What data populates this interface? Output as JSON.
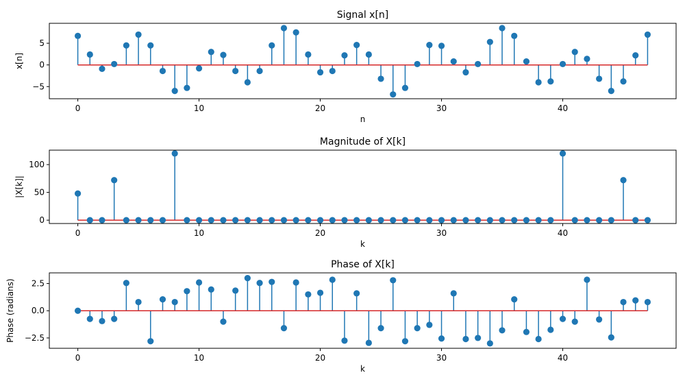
{
  "chart_data": [
    {
      "type": "stem",
      "title": "Signal x[n]",
      "xlabel": "n",
      "ylabel": "x[n]",
      "xlim": [
        -2.35,
        49.35
      ],
      "ylim": [
        -7.8,
        9.6
      ],
      "xticks": [
        0,
        10,
        20,
        30,
        40
      ],
      "xtick_labels": [
        "0",
        "10",
        "20",
        "30",
        "40"
      ],
      "yticks": [
        5,
        0,
        -5
      ],
      "ytick_labels": [
        "5",
        "0",
        "−5"
      ],
      "x": [
        0,
        1,
        2,
        3,
        4,
        5,
        6,
        7,
        8,
        9,
        10,
        11,
        12,
        13,
        14,
        15,
        16,
        17,
        18,
        19,
        20,
        21,
        22,
        23,
        24,
        25,
        26,
        27,
        28,
        29,
        30,
        31,
        32,
        33,
        34,
        35,
        36,
        37,
        38,
        39,
        40,
        41,
        42,
        43,
        44,
        45,
        46,
        47
      ],
      "values": [
        6.7,
        2.4,
        -0.9,
        0.2,
        4.5,
        7.0,
        4.5,
        -1.4,
        -6.0,
        -5.3,
        -0.8,
        3.0,
        2.3,
        -1.4,
        -4.0,
        -1.4,
        4.5,
        8.5,
        7.5,
        2.4,
        -1.7,
        -1.4,
        2.2,
        4.6,
        2.4,
        -3.2,
        -6.8,
        -5.3,
        0.2,
        4.6,
        4.4,
        0.8,
        -1.7,
        0.2,
        5.3,
        8.5,
        6.7,
        0.8,
        -4.0,
        -3.8,
        0.2,
        3.0,
        1.4,
        -3.2,
        -6.0,
        -3.8,
        2.2,
        7.0
      ],
      "baseline": 0,
      "colors": {
        "stem": "#1f77b4",
        "marker": "#1f77b4",
        "baseline": "#d62728"
      }
    },
    {
      "type": "stem",
      "title": "Magnitude of X[k]",
      "xlabel": "k",
      "ylabel": "|X[k]|",
      "xlim": [
        -2.35,
        49.35
      ],
      "ylim": [
        -6,
        126
      ],
      "xticks": [
        0,
        10,
        20,
        30,
        40
      ],
      "xtick_labels": [
        "0",
        "10",
        "20",
        "30",
        "40"
      ],
      "yticks": [
        100,
        50,
        0
      ],
      "ytick_labels": [
        "100",
        "50",
        "0"
      ],
      "x": [
        0,
        1,
        2,
        3,
        4,
        5,
        6,
        7,
        8,
        9,
        10,
        11,
        12,
        13,
        14,
        15,
        16,
        17,
        18,
        19,
        20,
        21,
        22,
        23,
        24,
        25,
        26,
        27,
        28,
        29,
        30,
        31,
        32,
        33,
        34,
        35,
        36,
        37,
        38,
        39,
        40,
        41,
        42,
        43,
        44,
        45,
        46,
        47
      ],
      "values": [
        48,
        0,
        0,
        72,
        0,
        0,
        0,
        0,
        120,
        0,
        0,
        0,
        0,
        0,
        0,
        0,
        0,
        0,
        0,
        0,
        0,
        0,
        0,
        0,
        0,
        0,
        0,
        0,
        0,
        0,
        0,
        0,
        0,
        0,
        0,
        0,
        0,
        0,
        0,
        0,
        120,
        0,
        0,
        0,
        0,
        72,
        0,
        0
      ],
      "baseline": 0,
      "colors": {
        "stem": "#1f77b4",
        "marker": "#1f77b4",
        "baseline": "#d62728"
      }
    },
    {
      "type": "stem",
      "title": "Phase of X[k]",
      "xlabel": "k",
      "ylabel": "Phase (radians)",
      "xlim": [
        -2.35,
        49.35
      ],
      "ylim": [
        -3.45,
        3.48
      ],
      "xticks": [
        0,
        10,
        20,
        30,
        40
      ],
      "xtick_labels": [
        "0",
        "10",
        "20",
        "30",
        "40"
      ],
      "yticks": [
        2.5,
        0.0,
        -2.5
      ],
      "ytick_labels": [
        "2.5",
        "0.0",
        "−2.5"
      ],
      "x": [
        0,
        1,
        2,
        3,
        4,
        5,
        6,
        7,
        8,
        9,
        10,
        11,
        12,
        13,
        14,
        15,
        16,
        17,
        18,
        19,
        20,
        21,
        22,
        23,
        24,
        25,
        26,
        27,
        28,
        29,
        30,
        31,
        32,
        33,
        34,
        35,
        36,
        37,
        38,
        39,
        40,
        41,
        42,
        43,
        44,
        45,
        46,
        47
      ],
      "values": [
        0.0,
        -0.75,
        -0.95,
        -0.75,
        2.55,
        0.8,
        -2.8,
        1.05,
        0.8,
        1.8,
        2.6,
        1.95,
        -1.0,
        1.85,
        3.0,
        2.55,
        2.65,
        -1.6,
        2.6,
        1.5,
        1.65,
        2.85,
        -2.75,
        1.6,
        -2.95,
        -1.6,
        2.8,
        -2.8,
        -1.6,
        -1.3,
        -2.55,
        1.6,
        -2.6,
        -2.5,
        -3.0,
        -1.8,
        1.05,
        -1.95,
        -2.6,
        -1.75,
        -0.75,
        -1.0,
        2.85,
        -0.8,
        -2.45,
        0.8,
        0.95,
        0.8
      ],
      "baseline": 0,
      "colors": {
        "stem": "#1f77b4",
        "marker": "#1f77b4",
        "baseline": "#d62728"
      }
    }
  ]
}
